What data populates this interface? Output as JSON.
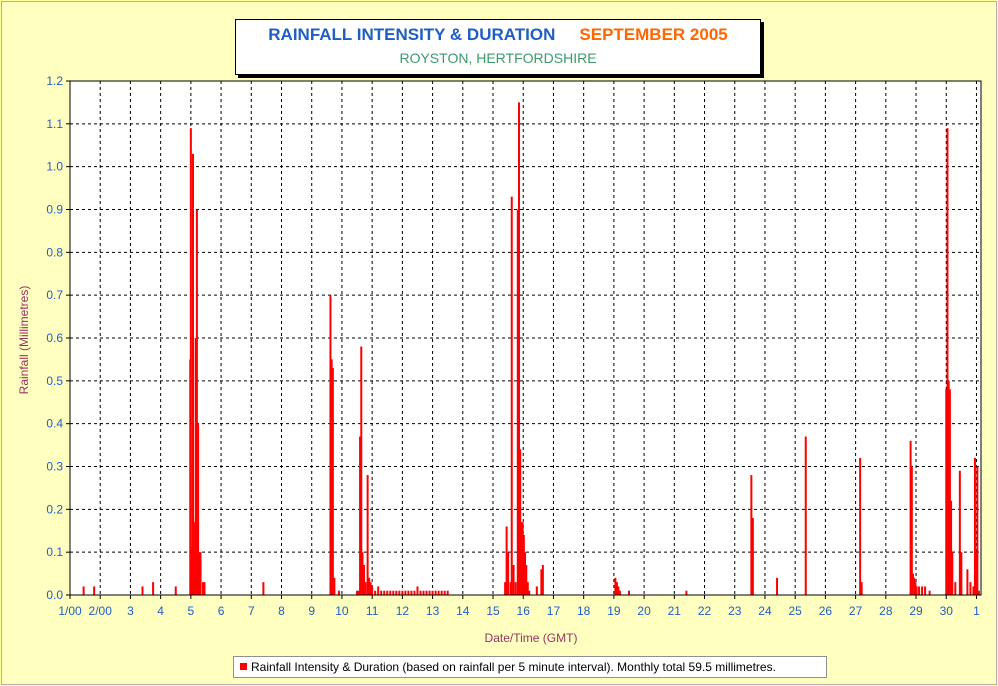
{
  "title": {
    "main": "RAINFALL INTENSITY & DURATION",
    "month": "SEPTEMBER 2005",
    "location": "ROYSTON, HERTFORDSHIRE"
  },
  "legend": {
    "text": "Rainfall Intensity & Duration (based on rainfall per 5 minute interval). Monthly total 59.5 millimetres."
  },
  "colors": {
    "background": "#ffff99",
    "bars": "#ff0000",
    "title_main": "#1f5fc4",
    "title_month": "#ff6600",
    "title_location": "#3a9a6a",
    "axis_label": "#993366",
    "tick_label": "#1f5fc4"
  },
  "chart_data": {
    "type": "bar",
    "xlabel": "Date/Time (GMT)",
    "ylabel": "Rainfall (Millimetres)",
    "xlim": [
      1,
      31.15
    ],
    "ylim": [
      0,
      1.2
    ],
    "grid": true,
    "legend_position": "bottom",
    "x_tick_labels": [
      {
        "x": 1,
        "label": "1/00"
      },
      {
        "x": 2,
        "label": "2/00"
      },
      {
        "x": 3,
        "label": "3"
      },
      {
        "x": 4,
        "label": "4"
      },
      {
        "x": 5,
        "label": "5"
      },
      {
        "x": 6,
        "label": "6"
      },
      {
        "x": 7,
        "label": "7"
      },
      {
        "x": 8,
        "label": "8"
      },
      {
        "x": 9,
        "label": "9"
      },
      {
        "x": 10,
        "label": "10"
      },
      {
        "x": 11,
        "label": "11"
      },
      {
        "x": 12,
        "label": "12"
      },
      {
        "x": 13,
        "label": "13"
      },
      {
        "x": 14,
        "label": "14"
      },
      {
        "x": 15,
        "label": "15"
      },
      {
        "x": 16,
        "label": "16"
      },
      {
        "x": 17,
        "label": "17"
      },
      {
        "x": 18,
        "label": "18"
      },
      {
        "x": 19,
        "label": "19"
      },
      {
        "x": 20,
        "label": "20"
      },
      {
        "x": 21,
        "label": "21"
      },
      {
        "x": 22,
        "label": "22"
      },
      {
        "x": 23,
        "label": "23"
      },
      {
        "x": 24,
        "label": "24"
      },
      {
        "x": 25,
        "label": "25"
      },
      {
        "x": 26,
        "label": "26"
      },
      {
        "x": 27,
        "label": "27"
      },
      {
        "x": 28,
        "label": "28"
      },
      {
        "x": 29,
        "label": "29"
      },
      {
        "x": 30,
        "label": "30"
      },
      {
        "x": 31,
        "label": "1"
      }
    ],
    "y_tick_labels": [
      "0.0",
      "0.1",
      "0.2",
      "0.3",
      "0.4",
      "0.5",
      "0.6",
      "0.7",
      "0.8",
      "0.9",
      "1.0",
      "1.1",
      "1.2"
    ],
    "series": [
      {
        "points": [
          [
            1.45,
            0.02
          ],
          [
            1.8,
            0.02
          ],
          [
            3.4,
            0.02
          ],
          [
            3.75,
            0.03
          ],
          [
            4.5,
            0.02
          ],
          [
            4.98,
            0.55
          ],
          [
            5.0,
            1.09
          ],
          [
            5.03,
            0.11
          ],
          [
            5.07,
            1.03
          ],
          [
            5.1,
            0.17
          ],
          [
            5.13,
            0.1
          ],
          [
            5.16,
            0.6
          ],
          [
            5.2,
            0.9
          ],
          [
            5.24,
            0.4
          ],
          [
            5.28,
            0.1
          ],
          [
            5.32,
            0.1
          ],
          [
            5.4,
            0.03
          ],
          [
            5.45,
            0.03
          ],
          [
            7.4,
            0.03
          ],
          [
            9.62,
            0.7
          ],
          [
            9.66,
            0.55
          ],
          [
            9.7,
            0.53
          ],
          [
            9.75,
            0.04
          ],
          [
            9.9,
            0.01
          ],
          [
            10.5,
            0.01
          ],
          [
            10.55,
            0.01
          ],
          [
            10.6,
            0.37
          ],
          [
            10.64,
            0.58
          ],
          [
            10.68,
            0.1
          ],
          [
            10.73,
            0.07
          ],
          [
            10.78,
            0.03
          ],
          [
            10.85,
            0.28
          ],
          [
            10.9,
            0.04
          ],
          [
            10.95,
            0.03
          ],
          [
            11.0,
            0.02
          ],
          [
            11.1,
            0.01
          ],
          [
            11.2,
            0.02
          ],
          [
            11.3,
            0.01
          ],
          [
            11.4,
            0.01
          ],
          [
            11.5,
            0.01
          ],
          [
            11.6,
            0.01
          ],
          [
            11.7,
            0.01
          ],
          [
            11.8,
            0.01
          ],
          [
            11.9,
            0.01
          ],
          [
            12.0,
            0.01
          ],
          [
            12.1,
            0.01
          ],
          [
            12.2,
            0.01
          ],
          [
            12.3,
            0.01
          ],
          [
            12.4,
            0.01
          ],
          [
            12.5,
            0.02
          ],
          [
            12.6,
            0.01
          ],
          [
            12.7,
            0.01
          ],
          [
            12.8,
            0.01
          ],
          [
            12.9,
            0.01
          ],
          [
            13.0,
            0.01
          ],
          [
            13.1,
            0.01
          ],
          [
            13.2,
            0.01
          ],
          [
            13.3,
            0.01
          ],
          [
            13.4,
            0.01
          ],
          [
            13.5,
            0.01
          ],
          [
            15.4,
            0.03
          ],
          [
            15.45,
            0.16
          ],
          [
            15.5,
            0.1
          ],
          [
            15.58,
            0.03
          ],
          [
            15.62,
            0.93
          ],
          [
            15.68,
            0.07
          ],
          [
            15.75,
            0.03
          ],
          [
            15.82,
            0.9
          ],
          [
            15.86,
            1.15
          ],
          [
            15.9,
            0.34
          ],
          [
            15.94,
            0.17
          ],
          [
            15.98,
            0.17
          ],
          [
            16.02,
            0.14
          ],
          [
            16.06,
            0.1
          ],
          [
            16.1,
            0.07
          ],
          [
            16.15,
            0.03
          ],
          [
            16.2,
            0.01
          ],
          [
            16.45,
            0.02
          ],
          [
            16.6,
            0.06
          ],
          [
            16.65,
            0.07
          ],
          [
            19.05,
            0.04
          ],
          [
            19.1,
            0.03
          ],
          [
            19.15,
            0.02
          ],
          [
            19.2,
            0.01
          ],
          [
            19.5,
            0.01
          ],
          [
            21.4,
            0.01
          ],
          [
            23.55,
            0.28
          ],
          [
            23.6,
            0.18
          ],
          [
            24.4,
            0.04
          ],
          [
            25.35,
            0.37
          ],
          [
            27.15,
            0.32
          ],
          [
            27.2,
            0.03
          ],
          [
            28.82,
            0.36
          ],
          [
            28.86,
            0.3
          ],
          [
            28.9,
            0.05
          ],
          [
            28.94,
            0.04
          ],
          [
            28.98,
            0.03
          ],
          [
            29.02,
            0.02
          ],
          [
            29.1,
            0.02
          ],
          [
            29.2,
            0.02
          ],
          [
            29.3,
            0.02
          ],
          [
            29.45,
            0.01
          ],
          [
            30.0,
            0.48
          ],
          [
            30.04,
            1.09
          ],
          [
            30.08,
            0.5
          ],
          [
            30.12,
            0.48
          ],
          [
            30.16,
            0.22
          ],
          [
            30.2,
            0.1
          ],
          [
            30.3,
            0.03
          ],
          [
            30.45,
            0.29
          ],
          [
            30.5,
            0.1
          ],
          [
            30.7,
            0.06
          ],
          [
            30.8,
            0.03
          ],
          [
            30.9,
            0.02
          ],
          [
            30.95,
            0.32
          ],
          [
            31.0,
            0.1
          ],
          [
            31.03,
            0.3
          ],
          [
            31.08,
            0.01
          ]
        ]
      }
    ]
  }
}
